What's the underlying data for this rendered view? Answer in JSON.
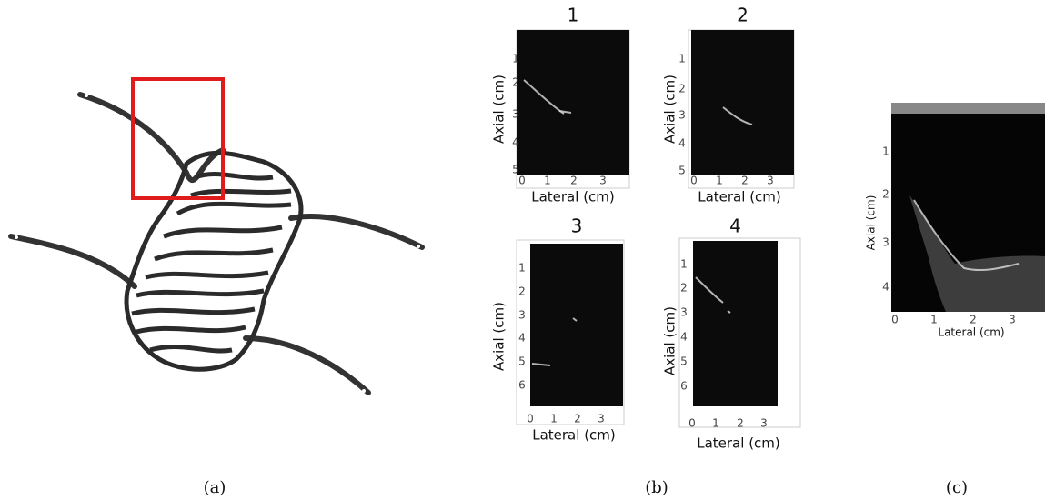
{
  "panels": [
    {
      "caption": "(a)"
    },
    {
      "caption": "(b)",
      "subplots": [
        {
          "title": "1",
          "y_label": "Axial (cm)",
          "x_label": "Lateral (cm)",
          "y_ticks": [
            1,
            2,
            3,
            4,
            5
          ],
          "x_ticks": [
            0,
            1,
            2,
            3
          ]
        },
        {
          "title": "2",
          "y_label": "Axial (cm)",
          "x_label": "Lateral (cm)",
          "y_ticks": [
            1,
            2,
            3,
            4,
            5
          ],
          "x_ticks": [
            0,
            1,
            2,
            3
          ]
        },
        {
          "title": "3",
          "y_label": "Axial (cm)",
          "x_label": "Lateral (cm)",
          "y_ticks": [
            1,
            2,
            3,
            4,
            5,
            6
          ],
          "x_ticks": [
            0,
            1,
            2,
            3
          ]
        },
        {
          "title": "4",
          "y_label": "Axial (cm)",
          "x_label": "Lateral (cm)",
          "y_ticks": [
            1,
            2,
            3,
            4,
            5,
            6
          ],
          "x_ticks": [
            0,
            1,
            2,
            3
          ]
        }
      ]
    },
    {
      "caption": "(c)",
      "y_label": "Axial (cm)",
      "x_label": "Lateral (cm)",
      "y_ticks": [
        1,
        2,
        3,
        4
      ],
      "x_ticks": [
        0,
        1,
        2,
        3
      ]
    }
  ]
}
